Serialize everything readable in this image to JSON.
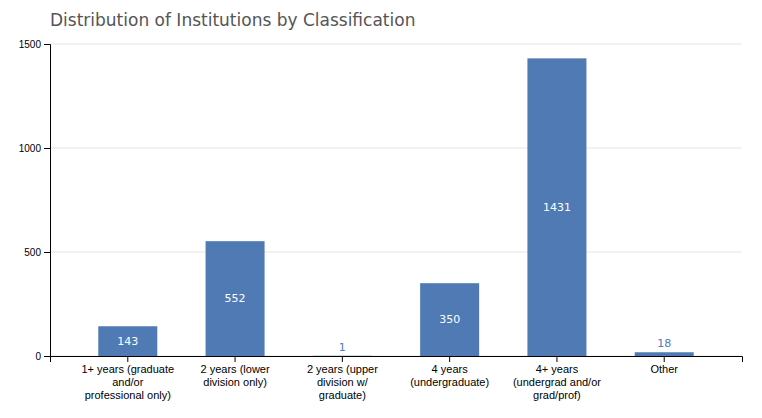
{
  "chart_data": {
    "type": "bar",
    "title": "Distribution of Institutions by Classification",
    "categories": [
      "1+ years (graduate\nand/or\nprofessional only)",
      "2 years (lower\ndivision only)",
      "2 years (upper\ndivision w/\ngraduate)",
      "4 years\n(undergraduate)",
      "4+ years\n(undergrad and/or\ngrad/prof)",
      "Other"
    ],
    "values": [
      143,
      552,
      1,
      350,
      1431,
      18
    ],
    "color": "#4f7ab3",
    "ylim": [
      0,
      1500
    ],
    "yticks": [
      0,
      500,
      1000,
      1500
    ],
    "grid": true,
    "data_labels": true
  }
}
